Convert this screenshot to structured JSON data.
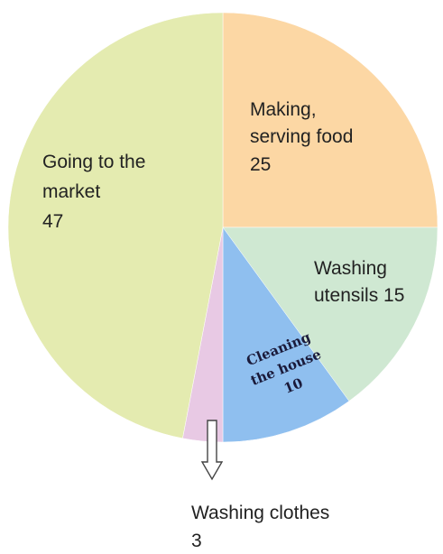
{
  "chart_data": {
    "type": "pie",
    "categories": [
      "Making, serving food",
      "Washing utensils",
      "Cleaning the house",
      "Washing clothes",
      "Going to the market"
    ],
    "values": [
      25,
      15,
      10,
      3,
      47
    ],
    "colors": [
      "#FCD7A4",
      "#CFE8D2",
      "#8FBFEF",
      "#E8C9E4",
      "#E4EBB0"
    ],
    "labels": {
      "making_food": {
        "line1": "Making,",
        "line2": "serving food",
        "value": "25"
      },
      "washing_utensils": {
        "line1": "Washing",
        "line2": "utensils 15"
      },
      "cleaning_house": {
        "line1": "Cleaning",
        "line2": "the house",
        "value": "10"
      },
      "washing_clothes": {
        "line1": "Washing clothes",
        "value": "3"
      },
      "market": {
        "line1": "Going to the",
        "line2": "market",
        "value": "47"
      }
    }
  }
}
